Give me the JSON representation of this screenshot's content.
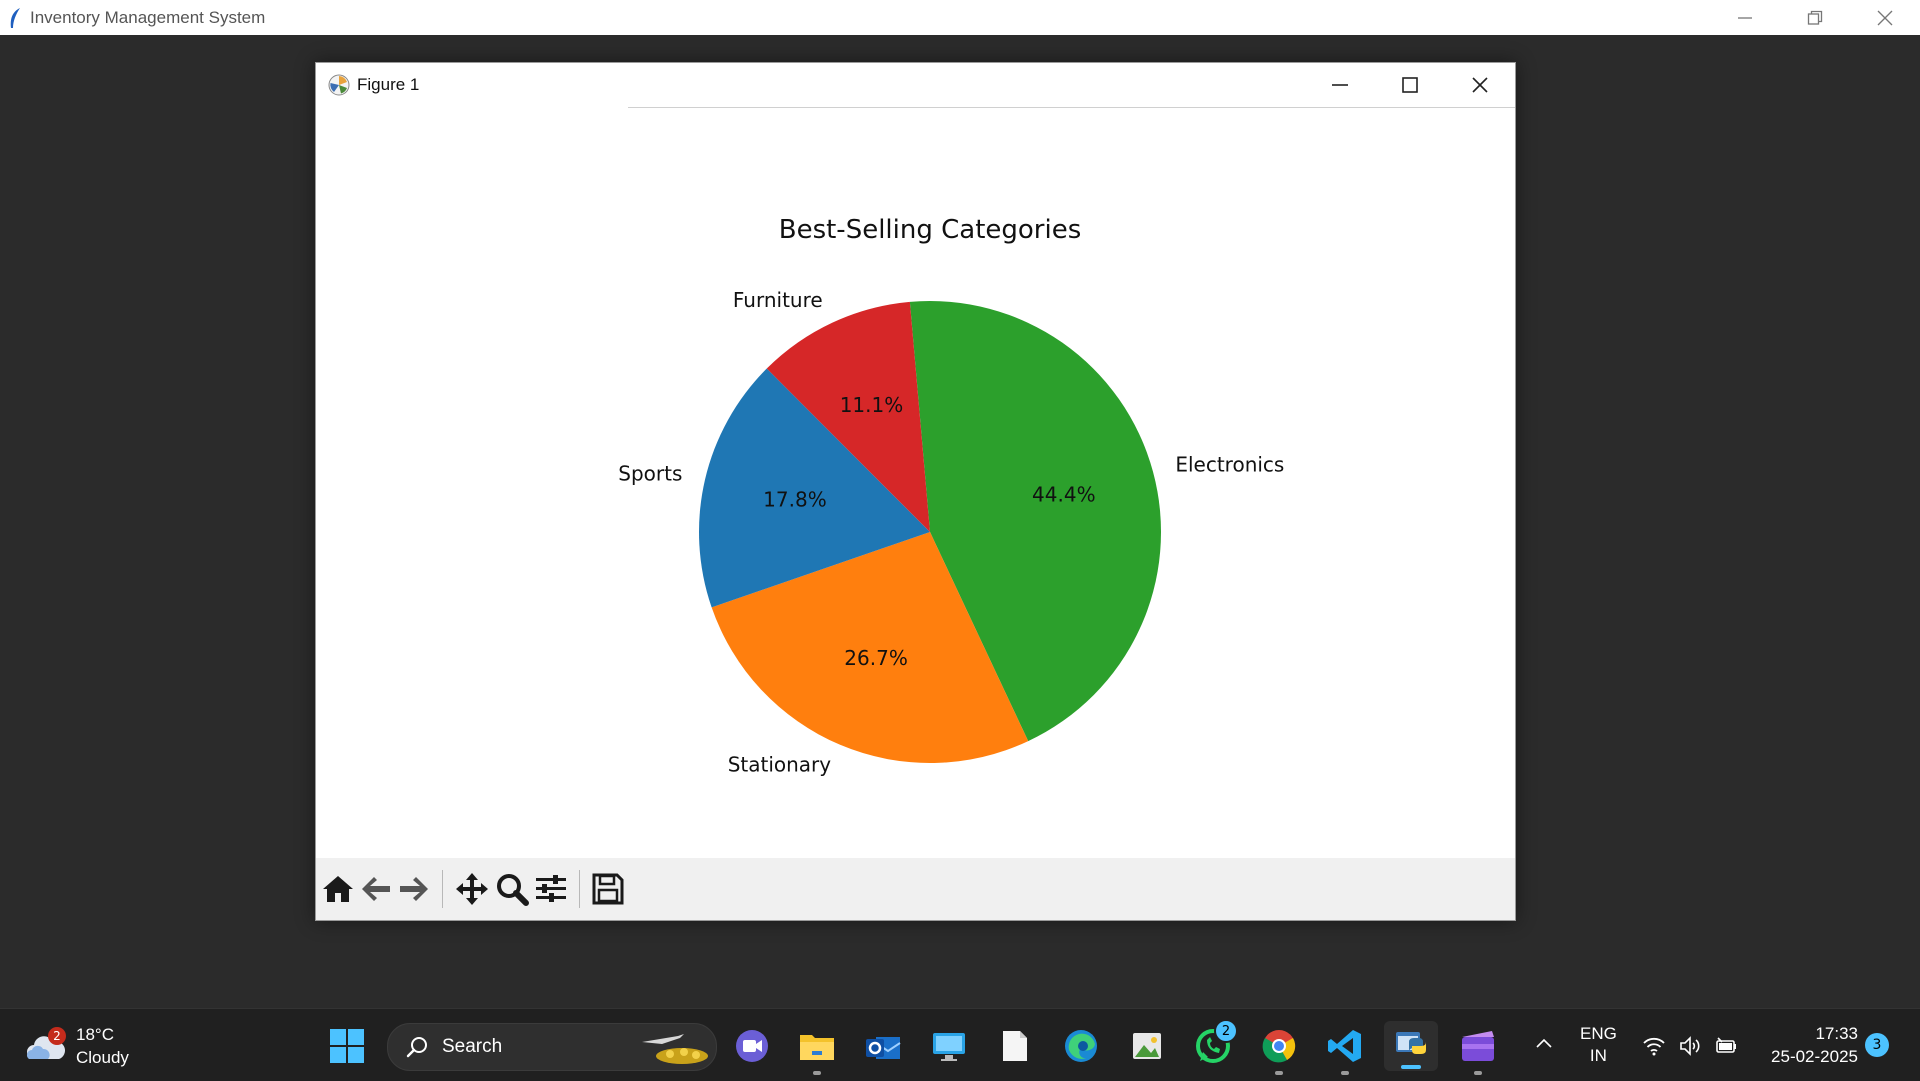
{
  "app": {
    "title": "Inventory Management System"
  },
  "figure_window": {
    "title": "Figure 1",
    "toolbar": [
      "home-icon",
      "back-arrow-icon",
      "forward-arrow-icon",
      "pan-move-icon",
      "zoom-icon",
      "configure-subplots-icon",
      "save-icon"
    ]
  },
  "chart_data": {
    "type": "pie",
    "title": "Best-Selling Categories",
    "categories": [
      "Electronics",
      "Stationary",
      "Sports",
      "Furniture"
    ],
    "values": [
      44.4,
      26.7,
      17.8,
      11.1
    ],
    "labels_pct": [
      "44.4%",
      "26.7%",
      "17.8%",
      "11.1%"
    ],
    "colors": [
      "#2ca02c",
      "#ff7f0e",
      "#1f77b4",
      "#d62728"
    ],
    "start_angle_deg": 95,
    "direction": "clockwise",
    "legend": "none"
  },
  "taskbar": {
    "weather": {
      "temp": "18°C",
      "condition": "Cloudy",
      "badge": "2"
    },
    "search_placeholder": "Search",
    "apps": [
      {
        "name": "meet-app",
        "badge": ""
      },
      {
        "name": "file-explorer",
        "badge": ""
      },
      {
        "name": "outlook",
        "badge": ""
      },
      {
        "name": "remote-desktop",
        "badge": ""
      },
      {
        "name": "notepad",
        "badge": ""
      },
      {
        "name": "edge",
        "badge": ""
      },
      {
        "name": "photos",
        "badge": ""
      },
      {
        "name": "whatsapp",
        "badge": "2"
      },
      {
        "name": "chrome",
        "badge": ""
      },
      {
        "name": "vscode",
        "badge": ""
      },
      {
        "name": "python",
        "badge": ""
      },
      {
        "name": "clipchamp",
        "badge": ""
      }
    ],
    "language": {
      "line1": "ENG",
      "line2": "IN"
    },
    "clock": {
      "time": "17:33",
      "date": "25-02-2025"
    },
    "notifications": "3"
  }
}
